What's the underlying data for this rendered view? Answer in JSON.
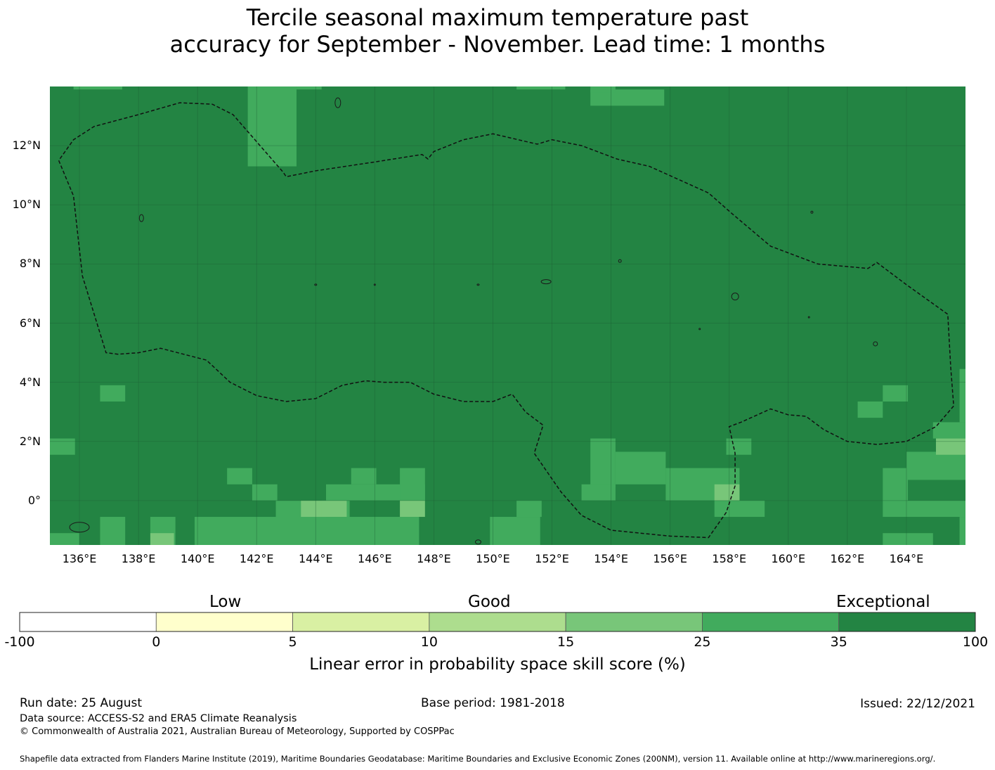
{
  "title_line1": "Tercile seasonal maximum temperature past",
  "title_line2": "accuracy for September - November. Lead time: 1 months",
  "map": {
    "lon_range": [
      135,
      166
    ],
    "lat_range": [
      -1.5,
      14
    ],
    "background_category": "Exceptional",
    "y_ticks": [
      "12°N",
      "10°N",
      "8°N",
      "6°N",
      "4°N",
      "2°N",
      "0°"
    ],
    "y_tick_values": [
      12,
      10,
      8,
      6,
      4,
      2,
      0
    ],
    "x_ticks": [
      "136°E",
      "138°E",
      "140°E",
      "142°E",
      "144°E",
      "146°E",
      "148°E",
      "150°E",
      "152°E",
      "154°E",
      "156°E",
      "158°E",
      "160°E",
      "162°E",
      "164°E"
    ],
    "x_tick_values": [
      136,
      138,
      140,
      142,
      144,
      146,
      148,
      150,
      152,
      154,
      156,
      158,
      160,
      162,
      164
    ],
    "cells_35_100_color": "#238443",
    "cells_25_35_color": "#41ab5d",
    "cells_15_25_color": "#78c679",
    "eez_boundary_lonlat": [
      [
        135.3,
        11.5
      ],
      [
        135.8,
        10.3
      ],
      [
        136.1,
        7.6
      ],
      [
        136.9,
        5.0
      ],
      [
        137.3,
        4.95
      ],
      [
        138.0,
        5.0
      ],
      [
        138.75,
        5.15
      ],
      [
        140.3,
        4.75
      ],
      [
        141.1,
        4.0
      ],
      [
        142.0,
        3.55
      ],
      [
        143.0,
        3.35
      ],
      [
        144.0,
        3.45
      ],
      [
        144.9,
        3.9
      ],
      [
        145.7,
        4.05
      ],
      [
        146.3,
        4.0
      ],
      [
        147.2,
        4.0
      ],
      [
        148.0,
        3.6
      ],
      [
        149.0,
        3.35
      ],
      [
        150.0,
        3.35
      ],
      [
        150.65,
        3.6
      ],
      [
        151.1,
        3.0
      ],
      [
        151.7,
        2.55
      ],
      [
        151.4,
        1.6
      ],
      [
        152.3,
        0.3
      ],
      [
        153.0,
        -0.5
      ],
      [
        154.0,
        -1.0
      ],
      [
        155.0,
        -1.1
      ],
      [
        156.0,
        -1.2
      ],
      [
        157.3,
        -1.25
      ],
      [
        157.9,
        -0.4
      ],
      [
        158.2,
        0.5
      ],
      [
        158.2,
        1.6
      ],
      [
        158.0,
        2.5
      ],
      [
        158.4,
        2.65
      ],
      [
        159.4,
        3.1
      ],
      [
        160.0,
        2.9
      ],
      [
        160.6,
        2.85
      ],
      [
        161.2,
        2.4
      ],
      [
        162.0,
        2.0
      ],
      [
        163.0,
        1.9
      ],
      [
        164.0,
        2.0
      ],
      [
        165.0,
        2.5
      ],
      [
        165.6,
        3.2
      ],
      [
        165.5,
        4.5
      ],
      [
        165.4,
        6.3
      ],
      [
        164.0,
        7.3
      ],
      [
        163.0,
        8.05
      ],
      [
        162.7,
        7.85
      ],
      [
        161.0,
        8.0
      ],
      [
        159.4,
        8.6
      ],
      [
        158.1,
        9.7
      ],
      [
        157.3,
        10.4
      ],
      [
        156.3,
        10.85
      ],
      [
        155.3,
        11.3
      ],
      [
        154.2,
        11.55
      ],
      [
        153.0,
        12.0
      ],
      [
        152.0,
        12.2
      ],
      [
        151.5,
        12.05
      ],
      [
        150.0,
        12.4
      ],
      [
        149.0,
        12.2
      ],
      [
        148.0,
        11.8
      ],
      [
        147.8,
        11.55
      ],
      [
        147.6,
        11.7
      ],
      [
        146.0,
        11.45
      ],
      [
        144.0,
        11.15
      ],
      [
        143.0,
        10.95
      ],
      [
        142.9,
        11.1
      ],
      [
        141.2,
        13.05
      ],
      [
        140.5,
        13.4
      ],
      [
        139.4,
        13.45
      ],
      [
        138.0,
        13.05
      ],
      [
        136.5,
        12.65
      ],
      [
        135.8,
        12.2
      ],
      [
        135.3,
        11.5
      ]
    ]
  },
  "colorbar": {
    "categories": [
      "Low",
      "Good",
      "Exceptional"
    ],
    "boundaries": [
      "-100",
      "0",
      "5",
      "10",
      "15",
      "25",
      "35",
      "100"
    ],
    "colors": [
      "#ffffff",
      "#ffffcc",
      "#d9f0a3",
      "#addd8e",
      "#78c679",
      "#41ab5d",
      "#238443"
    ],
    "label": "Linear error in probability space skill score (%)"
  },
  "footer": {
    "run_date": "Run date: 25 August",
    "base_period": "Base period: 1981-2018",
    "issued": "Issued: 22/12/2021",
    "data_source": "Data source: ACCESS-S2 and ERA5 Climate Reanalysis",
    "copyright": "© Commonwealth of Australia 2021, Australian Bureau of Meteorology, Supported by COSPPac",
    "shapefile": "Shapefile data extracted from Flanders Marine Institute (2019), Maritime Boundaries Geodatabase: Maritime Boundaries and Exclusive Economic Zones (200NM), version 11. Available online at http://www.marineregions.org/."
  }
}
